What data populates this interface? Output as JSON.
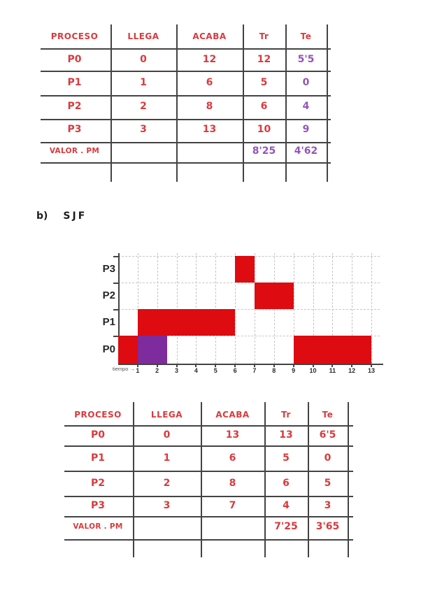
{
  "ink": {
    "red": "#d83b3e",
    "purple": "#9355bb",
    "line": "#434343"
  },
  "section": {
    "marker": "b)",
    "title": "SJF"
  },
  "tables": {
    "top": {
      "headers": [
        "PROCESO",
        "LLEGA",
        "ACABA",
        "Tr",
        "Te"
      ],
      "rows": [
        {
          "proceso": "P0",
          "llega": "0",
          "acaba": "12",
          "tr": "12",
          "te": "5'5"
        },
        {
          "proceso": "P1",
          "llega": "1",
          "acaba": "6",
          "tr": "5",
          "te": "0"
        },
        {
          "proceso": "P2",
          "llega": "2",
          "acaba": "8",
          "tr": "6",
          "te": "4"
        },
        {
          "proceso": "P3",
          "llega": "3",
          "acaba": "13",
          "tr": "10",
          "te": "9"
        },
        {
          "proceso": "VALOR . PM",
          "llega": "",
          "acaba": "",
          "tr": "8'25",
          "te": "4'62"
        }
      ]
    },
    "bottom": {
      "headers": [
        "PROCESO",
        "LLEGA",
        "ACABA",
        "Tr",
        "Te"
      ],
      "rows": [
        {
          "proceso": "P0",
          "llega": "0",
          "acaba": "13",
          "tr": "13",
          "te": "6'5"
        },
        {
          "proceso": "P1",
          "llega": "1",
          "acaba": "6",
          "tr": "5",
          "te": "0"
        },
        {
          "proceso": "P2",
          "llega": "2",
          "acaba": "8",
          "tr": "6",
          "te": "5"
        },
        {
          "proceso": "P3",
          "llega": "3",
          "acaba": "7",
          "tr": "4",
          "te": "3"
        },
        {
          "proceso": "VALOR . PM",
          "llega": "",
          "acaba": "",
          "tr": "7'25",
          "te": "3'65"
        }
      ]
    }
  },
  "chart_data": {
    "type": "gantt",
    "xlabel": "tiempo →",
    "x_range": [
      0,
      13
    ],
    "x_ticks": [
      1,
      2,
      3,
      4,
      5,
      6,
      7,
      8,
      9,
      10,
      11,
      12,
      13
    ],
    "rows": [
      "P3",
      "P2",
      "P1",
      "P0"
    ],
    "grid": true,
    "bar_colors": {
      "run": "#de0b10",
      "swap": "#7e2b9d"
    },
    "bars": [
      {
        "row": "P3",
        "start": 6,
        "end": 7,
        "color": "#de0b10"
      },
      {
        "row": "P2",
        "start": 7,
        "end": 9,
        "color": "#de0b10"
      },
      {
        "row": "P1",
        "start": 1,
        "end": 6,
        "color": "#de0b10"
      },
      {
        "row": "P0",
        "start": 0,
        "end": 1,
        "color": "#de0b10"
      },
      {
        "row": "P0",
        "start": 1,
        "end": 2.5,
        "color": "#7e2b9d"
      },
      {
        "row": "P0",
        "start": 9,
        "end": 13,
        "color": "#de0b10"
      }
    ]
  }
}
